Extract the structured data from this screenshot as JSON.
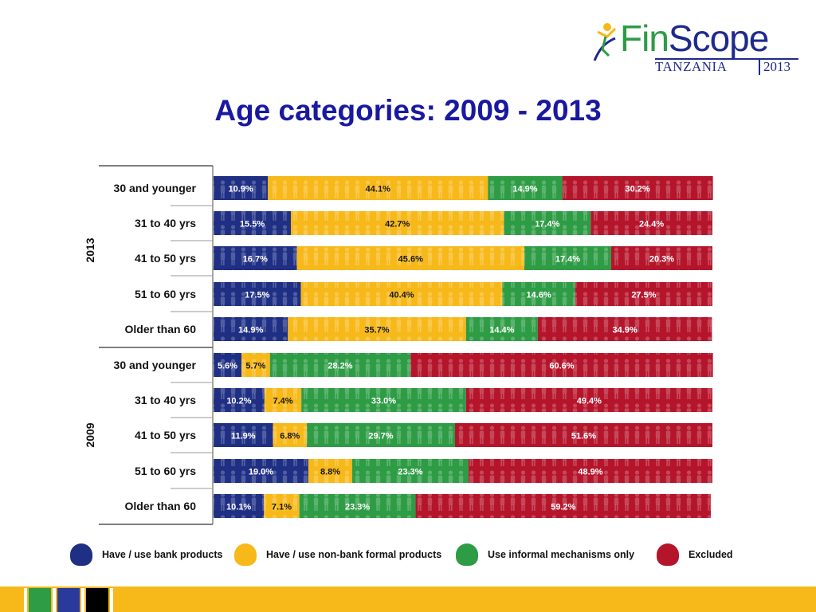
{
  "logo": {
    "word_fin": "Fin",
    "word_scope": "Scope",
    "country": "TANZANIA",
    "year": "2013",
    "icon": "figure-logo-icon"
  },
  "title": "Age categories: 2009 - 2013",
  "colors": {
    "bank": "#1f2f84",
    "nonbank": "#f7b81a",
    "informal": "#2e9c45",
    "excluded": "#b5152b"
  },
  "chart_data": {
    "type": "bar",
    "orientation": "horizontal",
    "stacked": true,
    "percent": true,
    "groups": [
      "2013",
      "2009"
    ],
    "categories": [
      {
        "group": "2013",
        "label": "30 and younger"
      },
      {
        "group": "2013",
        "label": "31 to 40 yrs"
      },
      {
        "group": "2013",
        "label": "41 to 50 yrs"
      },
      {
        "group": "2013",
        "label": "51 to 60 yrs"
      },
      {
        "group": "2013",
        "label": "Older than 60"
      },
      {
        "group": "2009",
        "label": "30 and younger"
      },
      {
        "group": "2009",
        "label": "31 to 40 yrs"
      },
      {
        "group": "2009",
        "label": "41 to 50 yrs"
      },
      {
        "group": "2009",
        "label": "51 to 60 yrs"
      },
      {
        "group": "2009",
        "label": "Older than 60"
      }
    ],
    "series": [
      {
        "name": "Have / use bank products",
        "color": "#1f2f84",
        "values": [
          10.9,
          15.5,
          16.7,
          17.5,
          14.9,
          5.6,
          10.2,
          11.9,
          19.0,
          10.1
        ],
        "labels": [
          "10.9%",
          "15.5%",
          "16.7%",
          "17.5%",
          "14.9%",
          "5.6%",
          "10.2%",
          "11.9%",
          "19.0%",
          "10.1%"
        ]
      },
      {
        "name": "Have / use non-bank formal products",
        "color": "#f7b81a",
        "values": [
          44.1,
          42.7,
          45.6,
          40.4,
          35.7,
          5.7,
          7.4,
          6.8,
          8.8,
          7.1
        ],
        "labels": [
          "44.1%",
          "42.7%",
          "45.6%",
          "40.4%",
          "35.7%",
          "5.7%",
          "7.4%",
          "6.8%",
          "8.8%",
          "7.1%"
        ]
      },
      {
        "name": "Use informal mechanisms only",
        "color": "#2e9c45",
        "values": [
          14.9,
          17.4,
          17.4,
          14.6,
          14.4,
          28.2,
          33.0,
          29.7,
          23.3,
          23.3
        ],
        "labels": [
          "14.9%",
          "17.4%",
          "17.4%",
          "14.6%",
          "14.4%",
          "28.2%",
          "33.0%",
          "29.7%",
          "23.3%",
          "23.3%"
        ]
      },
      {
        "name": "Excluded",
        "color": "#b5152b",
        "values": [
          30.2,
          24.4,
          20.3,
          27.5,
          34.9,
          60.6,
          49.4,
          51.6,
          48.9,
          59.2
        ],
        "labels": [
          "30.2%",
          "24.4%",
          "20.3%",
          "27.5%",
          "34.9%",
          "60.6%",
          "49.4%",
          "51.6%",
          "48.9%",
          "59.2%"
        ]
      }
    ],
    "xlim": [
      0,
      100
    ],
    "legend_position": "bottom"
  }
}
